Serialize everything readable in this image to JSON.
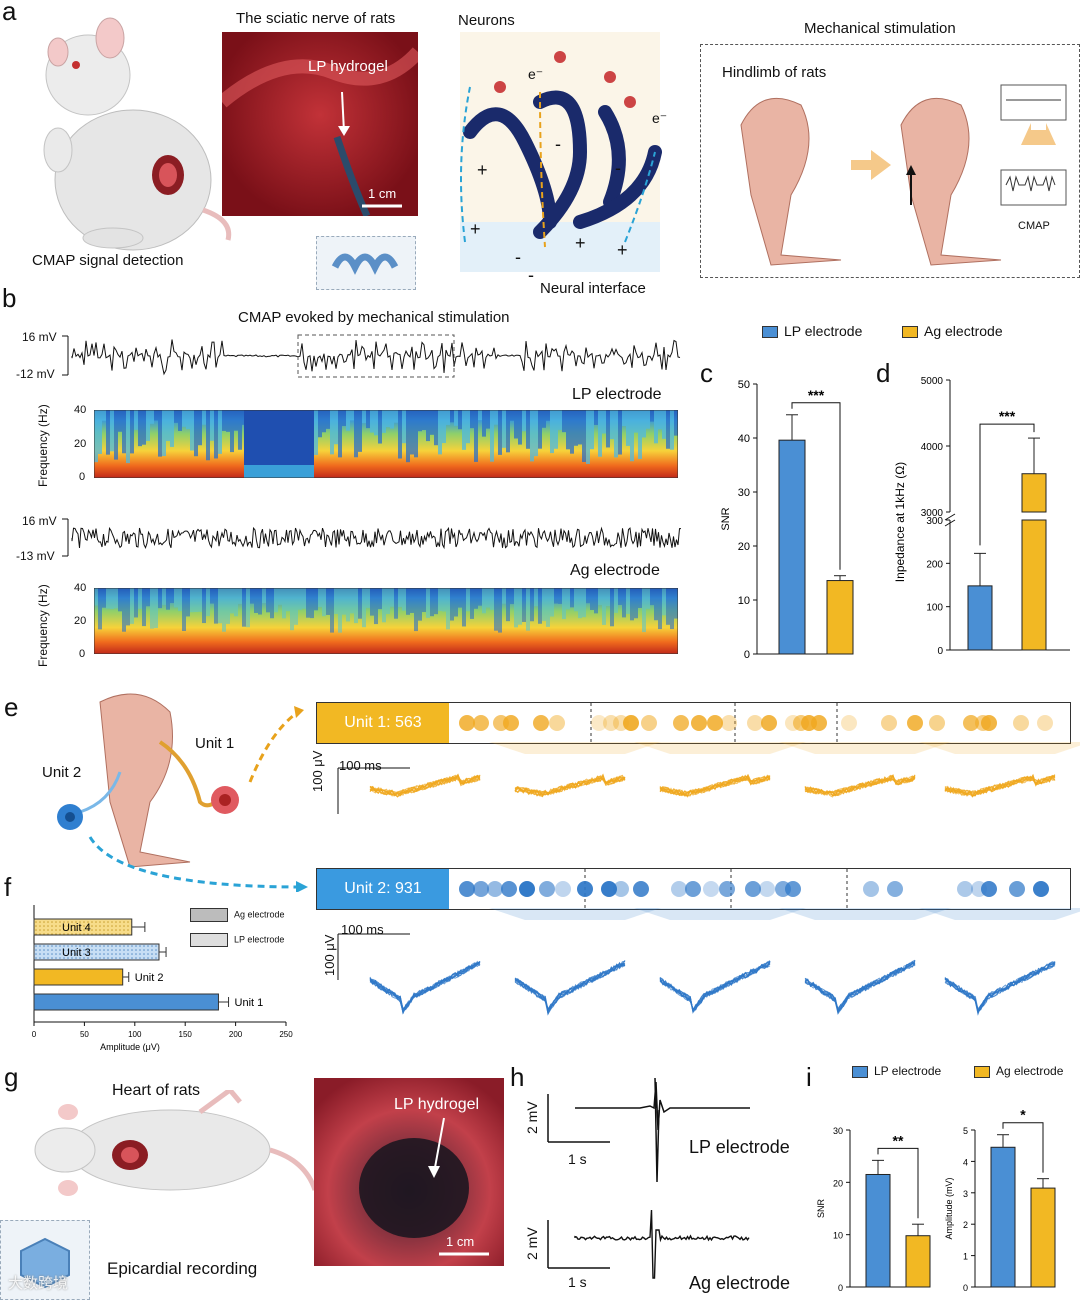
{
  "colors": {
    "lp": "#4a8fd4",
    "ag": "#f2b823",
    "dark": "#1a2a6b",
    "tissue": "#b3323a"
  },
  "panel_a": {
    "label": "a",
    "title_nerve": "The sciatic nerve of rats",
    "hydrogel_label": "LP hydrogel",
    "scale": "1 cm",
    "cmap_detection": "CMAP signal detection",
    "neurons": "Neurons",
    "neural_interface": "Neural interface",
    "ion_plus": "+",
    "ion_minus": "-",
    "electron": "e⁻",
    "mech_title": "Mechanical stimulation",
    "hindlimb": "Hindlimb of rats",
    "cmap_small": "CMAP"
  },
  "panel_b": {
    "label": "b",
    "title": "CMAP evoked by mechanical stimulation",
    "lp_top": "16 mV",
    "lp_bottom": "-12 mV",
    "lp_name": "LP electrode",
    "ag_top": "16 mV",
    "ag_bottom": "-13 mV",
    "ag_name": "Ag electrode",
    "freq_label": "Frequency (Hz)",
    "freq_ticks": [
      "40",
      "20",
      "0"
    ]
  },
  "legend_top": {
    "lp": "LP electrode",
    "ag": "Ag electrode"
  },
  "panel_c": {
    "label": "c",
    "chart_data": {
      "type": "bar",
      "categories": [
        "LP electrode",
        "Ag electrode"
      ],
      "values": [
        39.6,
        13.6
      ],
      "errors": [
        4.7,
        0.9
      ],
      "ylabel": "SNR",
      "ylim": [
        0,
        50
      ],
      "yticks": [
        "0",
        "10",
        "20",
        "30",
        "40",
        "50"
      ],
      "significance": "***"
    }
  },
  "panel_d": {
    "label": "d",
    "chart_data": {
      "type": "bar",
      "categories": [
        "LP electrode",
        "Ag electrode"
      ],
      "values": [
        148,
        3580
      ],
      "errors": [
        75,
        540
      ],
      "ylabel": "Inpedance at 1kHz (Ω)",
      "ylim_lower": [
        0,
        300
      ],
      "ylim_upper": [
        3000,
        5000
      ],
      "yticks_lower": [
        "0",
        "100",
        "200",
        "300"
      ],
      "yticks_upper": [
        "3000",
        "4000",
        "5000"
      ],
      "significance": "***"
    }
  },
  "panel_e": {
    "label": "e",
    "unit1_name": "Unit 1",
    "unit2_name": "Unit 2",
    "unit1_bar": "Unit 1: 563",
    "unit2_bar": "Unit 2: 931",
    "time_scale": "100 ms",
    "amp_scale": "100 μV"
  },
  "panel_f": {
    "label": "f",
    "legend_ag": "Ag electrode",
    "legend_lp": "LP electrode",
    "chart_data": {
      "type": "bar",
      "orientation": "horizontal",
      "categories": [
        "Unit 4",
        "Unit 3",
        "Unit 2",
        "Unit 1"
      ],
      "values": [
        97,
        124,
        88,
        183
      ],
      "errors": [
        13,
        7,
        6,
        10
      ],
      "xlabel": "Amplitude (μV)",
      "xlim": [
        0,
        250
      ],
      "xticks": [
        "0",
        "50",
        "100",
        "150",
        "200",
        "250"
      ]
    }
  },
  "panel_g": {
    "label": "g",
    "title": "Heart of rats",
    "hydrogel_label": "LP hydrogel",
    "scale": "1 cm",
    "caption": "Epicardial recording"
  },
  "panel_h": {
    "label": "h",
    "amp_scale": "2 mV",
    "time_scale": "1 s",
    "lp_name": "LP electrode",
    "ag_name": "Ag electrode"
  },
  "panel_i": {
    "label": "i",
    "legend_lp": "LP electrode",
    "legend_ag": "Ag electrode",
    "snr_chart": {
      "type": "bar",
      "categories": [
        "LP electrode",
        "Ag electrode"
      ],
      "values": [
        21.5,
        9.8
      ],
      "errors": [
        2.7,
        2.2
      ],
      "ylabel": "SNR",
      "ylim": [
        0,
        30
      ],
      "yticks": [
        "0",
        "10",
        "20",
        "30"
      ],
      "significance": "**"
    },
    "amp_chart": {
      "type": "bar",
      "categories": [
        "LP electrode",
        "Ag electrode"
      ],
      "values": [
        4.45,
        3.15
      ],
      "errors": [
        0.4,
        0.3
      ],
      "ylabel": "Amplitude (mV)",
      "ylim": [
        0,
        5
      ],
      "yticks": [
        "0",
        "1",
        "2",
        "3",
        "4",
        "5"
      ],
      "significance": "*"
    }
  },
  "watermark": "大数跨境"
}
